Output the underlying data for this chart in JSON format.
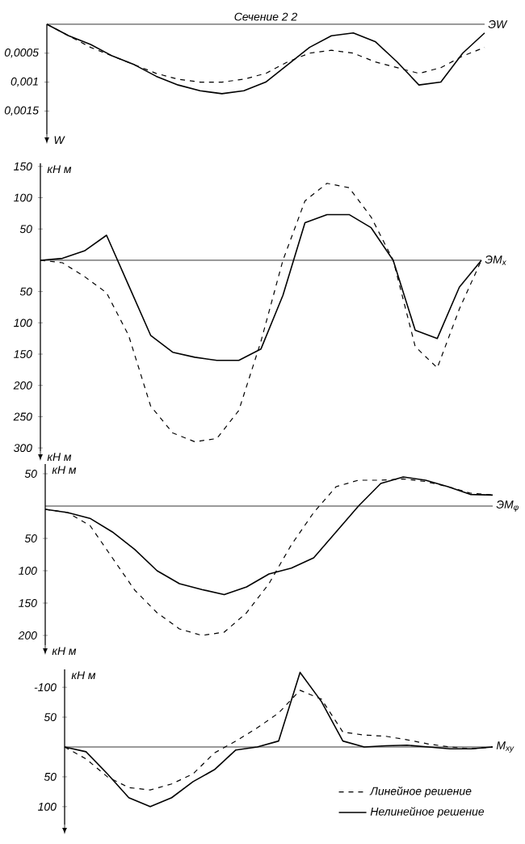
{
  "chart_data": [
    {
      "type": "line",
      "title": "Сечение 2 2",
      "xlabel": "ЭW",
      "annotations": [
        "W"
      ],
      "tick_labels": "y",
      "categories": [
        null,
        null,
        null,
        null,
        null,
        null,
        null,
        null,
        null,
        null,
        null,
        null,
        null,
        null,
        null,
        null,
        null,
        null,
        null,
        null,
        null
      ],
      "ylim": [
        0.0019,
        0
      ],
      "yticks": [
        {
          "value": 0.0005,
          "label": "0,0005"
        },
        {
          "value": 0.001,
          "label": "0,001"
        },
        {
          "value": 0.0015,
          "label": "0,0015"
        }
      ],
      "series": [
        {
          "color": "#000000",
          "line_style": "dashed",
          "values": [
            0,
            0.0002,
            0.0004,
            0.00055,
            0.0007,
            0.00085,
            0.00095,
            0.001,
            0.001,
            0.00095,
            0.00085,
            0.00065,
            0.0005,
            0.00045,
            0.0005,
            0.00065,
            0.00075,
            0.00085,
            0.00075,
            0.00055,
            0.0004
          ]
        },
        {
          "color": "#000000",
          "line_style": "solid",
          "values": [
            0,
            0.0002,
            0.00035,
            0.00055,
            0.0007,
            0.0009,
            0.00105,
            0.00115,
            0.0012,
            0.00115,
            0.001,
            0.0007,
            0.0004,
            0.0002,
            0.00015,
            0.0003,
            0.00065,
            0.00105,
            0.001,
            0.0005,
            0.00015
          ]
        }
      ]
    },
    {
      "type": "line",
      "xlabel": "ЭM$_{x}$",
      "ylabel": "кН м",
      "annotations": [
        "кН м"
      ],
      "tick_labels": "y",
      "categories": [
        null,
        null,
        null,
        null,
        null,
        null,
        null,
        null,
        null,
        null,
        null,
        null,
        null,
        null,
        null,
        null,
        null,
        null,
        null,
        null,
        null
      ],
      "ylim": [
        -305,
        155
      ],
      "yticks": [
        150,
        100,
        50,
        {
          "value": -50,
          "label": "50"
        },
        {
          "value": -100,
          "label": "100"
        },
        {
          "value": -150,
          "label": "150"
        },
        {
          "value": -200,
          "label": "200"
        },
        {
          "value": -250,
          "label": "250"
        },
        {
          "value": -300,
          "label": "300"
        }
      ],
      "series": [
        {
          "color": "#000000",
          "line_style": "dashed",
          "values": [
            0,
            -4,
            -26,
            -52,
            -120,
            -233,
            -276,
            -290,
            -285,
            -240,
            -130,
            0,
            95,
            123,
            116,
            69,
            0,
            -138,
            -172,
            -78,
            0
          ]
        },
        {
          "color": "#000000",
          "line_style": "solid",
          "values": [
            0,
            3,
            15,
            40,
            -40,
            -120,
            -147,
            -155,
            -160,
            -160,
            -142,
            -56,
            60,
            73,
            73,
            52,
            0,
            -112,
            -125,
            -43,
            0
          ]
        }
      ]
    },
    {
      "type": "line",
      "xlabel": "ЭM$_{φ}$",
      "ylabel": "кН м",
      "annotations": [
        "кН м"
      ],
      "tick_labels": "y",
      "categories": [
        null,
        null,
        null,
        null,
        null,
        null,
        null,
        null,
        null,
        null,
        null,
        null,
        null,
        null,
        null,
        null,
        null,
        null,
        null,
        null,
        null
      ],
      "ylim": [
        -215,
        65
      ],
      "yticks": [
        50,
        {
          "value": -50,
          "label": "50"
        },
        {
          "value": -100,
          "label": "100"
        },
        {
          "value": -150,
          "label": "150"
        },
        {
          "value": -200,
          "label": "200"
        }
      ],
      "series": [
        {
          "color": "#000000",
          "line_style": "dashed",
          "values": [
            -5,
            -10,
            -30,
            -80,
            -130,
            -165,
            -190,
            -200,
            -195,
            -165,
            -120,
            -60,
            -10,
            30,
            40,
            40,
            42,
            38,
            30,
            20,
            17
          ]
        },
        {
          "color": "#000000",
          "line_style": "solid",
          "values": [
            -5,
            -10,
            -19,
            -40,
            -67,
            -100,
            -120,
            -129,
            -137,
            -125,
            -105,
            -96,
            -80,
            -40,
            0,
            35,
            45,
            40,
            30,
            18,
            17
          ]
        }
      ]
    },
    {
      "type": "line",
      "xlabel": "M$_{xy}$",
      "ylabel": "кН м",
      "tick_labels": "y",
      "legend": "bottom right",
      "categories": [
        null,
        null,
        null,
        null,
        null,
        null,
        null,
        null,
        null,
        null,
        null,
        null,
        null,
        null,
        null,
        null,
        null,
        null,
        null,
        null,
        null
      ],
      "ylim": [
        130,
        -130
      ],
      "yticks": [
        {
          "value": -100,
          "label": "-100"
        },
        {
          "value": -50,
          "label": "50"
        },
        {
          "value": 50,
          "label": "50"
        },
        {
          "value": 100,
          "label": "100"
        }
      ],
      "series": [
        {
          "name": "Линейное решение",
          "color": "#000000",
          "line_style": "dashed",
          "values": [
            0,
            20,
            50,
            68,
            72,
            62,
            45,
            10,
            -10,
            -32,
            -57,
            -95,
            -80,
            -25,
            -20,
            -18,
            -12,
            -5,
            0,
            3,
            0
          ]
        },
        {
          "name": "Нелинейное решение",
          "color": "#000000",
          "line_style": "solid",
          "values": [
            0,
            8,
            45,
            85,
            100,
            85,
            58,
            38,
            5,
            0,
            -10,
            -125,
            -76,
            -10,
            0,
            -2,
            -3,
            0,
            3,
            3,
            0
          ]
        }
      ]
    }
  ]
}
